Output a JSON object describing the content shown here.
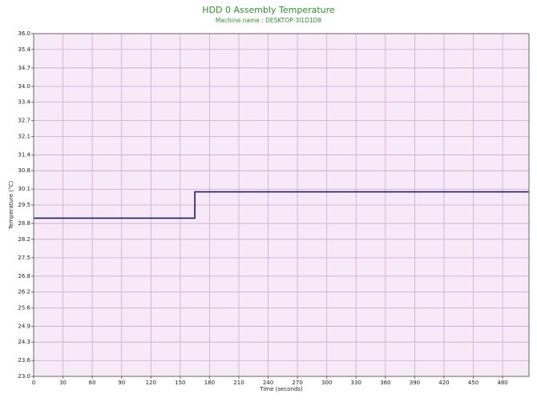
{
  "chart_data": {
    "type": "line",
    "title": "HDD 0 Assembly Temperature",
    "subtitle": "Machine name : DESKTOP-3I1D1D8",
    "x_label": "Time (seconds)",
    "y_label": "Temperature (°C)",
    "x": [
      0,
      165,
      165,
      507
    ],
    "series": [
      {
        "name": "HDD 0 Assembly Temperature",
        "color": "#1c1c6b",
        "values": [
          29.0,
          29.0,
          30.0,
          30.0
        ]
      }
    ],
    "xlim": [
      0,
      507
    ],
    "xticks": [
      0,
      30,
      60,
      90,
      120,
      150,
      180,
      210,
      240,
      270,
      300,
      330,
      360,
      390,
      420,
      450,
      480
    ],
    "ylim": [
      23.0,
      36.0
    ],
    "yticks": [
      {
        "value": 23.0,
        "label": "23.0"
      },
      23.6,
      24.3,
      24.9,
      25.6,
      26.2,
      26.8,
      27.5,
      28.2,
      28.8,
      29.5,
      30.1,
      30.8,
      31.4,
      32.1,
      32.7,
      33.4,
      {
        "value": 34.0,
        "label": "34.0"
      },
      34.7,
      35.4,
      {
        "value": 36.0,
        "label": "36.0"
      }
    ],
    "grid": true,
    "background": "#f8e9f8"
  }
}
